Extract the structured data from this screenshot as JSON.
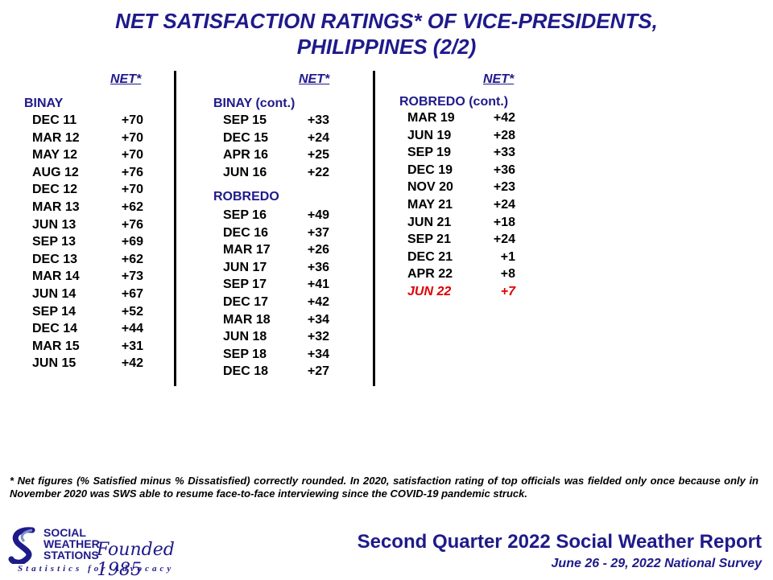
{
  "title": {
    "line1": "NET SATISFACTION  RATINGS* OF VICE-PRESIDENTS,",
    "line2": "PHILIPPINES (2/2)"
  },
  "columns": [
    {
      "header": "NET*",
      "sections": [
        {
          "label": "BINAY",
          "rows": [
            {
              "date": "DEC 11",
              "value": "+70"
            },
            {
              "date": "MAR 12",
              "value": "+70"
            },
            {
              "date": "MAY 12",
              "value": "+70"
            },
            {
              "date": "AUG 12",
              "value": "+76"
            },
            {
              "date": "DEC 12",
              "value": "+70"
            },
            {
              "date": "MAR 13",
              "value": "+62"
            },
            {
              "date": "JUN 13",
              "value": "+76"
            },
            {
              "date": "SEP 13",
              "value": "+69"
            },
            {
              "date": "DEC 13",
              "value": "+62"
            },
            {
              "date": "MAR 14",
              "value": "+73"
            },
            {
              "date": "JUN 14",
              "value": "+67"
            },
            {
              "date": "SEP 14",
              "value": "+52"
            },
            {
              "date": "DEC 14",
              "value": "+44"
            },
            {
              "date": "MAR 15",
              "value": "+31"
            },
            {
              "date": "JUN 15",
              "value": "+42"
            }
          ]
        }
      ]
    },
    {
      "header": "NET*",
      "sections": [
        {
          "label": "BINAY (cont.)",
          "rows": [
            {
              "date": "SEP 15",
              "value": "+33"
            },
            {
              "date": "DEC 15",
              "value": "+24"
            },
            {
              "date": "APR 16",
              "value": "+25"
            },
            {
              "date": "JUN 16",
              "value": "+22"
            }
          ]
        },
        {
          "label": "ROBREDO",
          "rows": [
            {
              "date": "SEP 16",
              "value": "+49"
            },
            {
              "date": "DEC 16",
              "value": "+37"
            },
            {
              "date": "MAR 17",
              "value": "+26"
            },
            {
              "date": "JUN 17",
              "value": "+36"
            },
            {
              "date": "SEP 17",
              "value": "+41"
            },
            {
              "date": "DEC 17",
              "value": "+42"
            },
            {
              "date": "MAR 18",
              "value": "+34"
            },
            {
              "date": "JUN 18",
              "value": "+32"
            },
            {
              "date": "SEP 18",
              "value": "+34"
            },
            {
              "date": "DEC 18",
              "value": "+27"
            }
          ]
        }
      ]
    },
    {
      "header": "NET*",
      "sections": [
        {
          "label": "ROBREDO (cont.)",
          "rows": [
            {
              "date": "MAR 19",
              "value": "+42"
            },
            {
              "date": "JUN 19",
              "value": "+28"
            },
            {
              "date": "SEP 19",
              "value": "+33"
            },
            {
              "date": "DEC 19",
              "value": "+36"
            },
            {
              "date": "NOV 20",
              "value": "+23"
            },
            {
              "date": "MAY 21",
              "value": "+24"
            },
            {
              "date": "JUN 21",
              "value": "+18"
            },
            {
              "date": "SEP 21",
              "value": "+24"
            },
            {
              "date": "DEC 21",
              "value": "+1"
            },
            {
              "date": "APR 22",
              "value": "+8"
            },
            {
              "date": "JUN 22",
              "value": "+7",
              "highlight": true
            }
          ]
        }
      ]
    }
  ],
  "footnote": "* Net figures  (% Satisfied  minus  % Dissatisfied)  correctly  rounded.  In 2020, satisfaction  rating  of top  officials  was  fielded  only  once  because  only  in  November  2020  was  SWS  able  to  resume  face-to-face  interviewing  since  the  COVID-19  pandemic  struck.",
  "logo": {
    "line1": "SOCIAL",
    "line2": "WEATHER",
    "line3": "STATIONS",
    "founded": "Founded 1985",
    "tagline": "Statistics for Advocacy"
  },
  "report_title": "Second Quarter 2022 Social Weather Report",
  "survey_dates": "June 26 - 29, 2022 National Survey",
  "colors": {
    "navy": "#1f1a8a",
    "highlight_red": "#e00000"
  }
}
